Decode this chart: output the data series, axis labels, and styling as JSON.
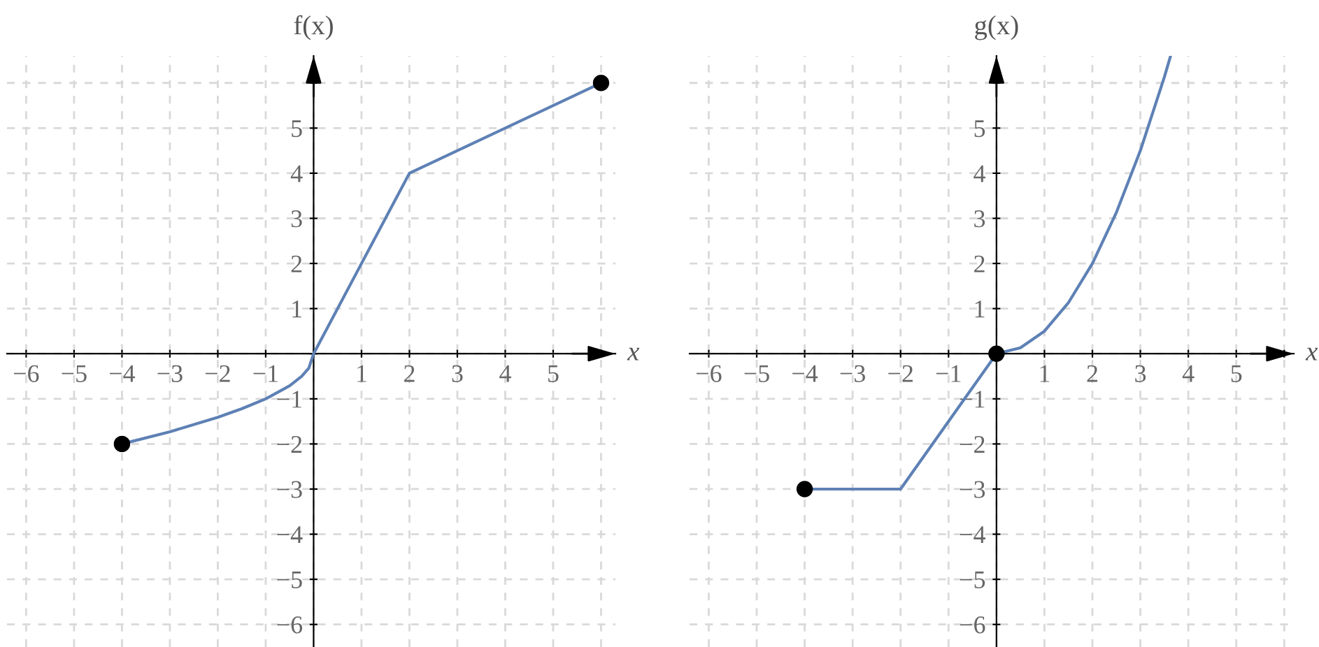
{
  "chart_data": [
    {
      "type": "line",
      "xlabel": "x",
      "ylabel": "f(x)",
      "grid": true,
      "xlim": [
        -6.4,
        6.3
      ],
      "ylim": [
        -6.5,
        6.6
      ],
      "xticks": [
        {
          "value": -6,
          "label": "−6"
        },
        {
          "value": -5,
          "label": "−5"
        },
        {
          "value": -4,
          "label": "−4"
        },
        {
          "value": -3,
          "label": "−3"
        },
        {
          "value": -2,
          "label": "−2"
        },
        {
          "value": -1,
          "label": "−1"
        },
        {
          "value": 0,
          "label": null
        },
        1,
        2,
        3,
        4,
        5,
        {
          "value": 6,
          "label": null
        }
      ],
      "yticks": [
        {
          "value": -6,
          "label": "−6"
        },
        {
          "value": -5,
          "label": "−5"
        },
        {
          "value": -4,
          "label": "−4"
        },
        {
          "value": -3,
          "label": "−3"
        },
        {
          "value": -2,
          "label": "−2"
        },
        {
          "value": -1,
          "label": "−1"
        },
        {
          "value": 0,
          "label": null
        },
        1,
        2,
        3,
        4,
        5,
        {
          "value": 6,
          "label": null
        }
      ],
      "series": [
        {
          "color": "#5e81b5",
          "x": [
            -4,
            -3,
            -2,
            -1.5,
            -1,
            -0.5,
            -0.25,
            -0.1,
            0,
            2,
            6
          ],
          "values": [
            -2,
            -1.73,
            -1.41,
            -1.22,
            -1,
            -0.71,
            -0.5,
            -0.32,
            0,
            4,
            6
          ]
        },
        {
          "type": "scatter",
          "color": "#000000",
          "x": [
            -4,
            6
          ],
          "values": [
            -2,
            6
          ]
        }
      ]
    },
    {
      "type": "line",
      "xlabel": "x",
      "ylabel": "g(x)",
      "grid": true,
      "xlim": [
        -6.4,
        6.2
      ],
      "ylim": [
        -6.5,
        6.6
      ],
      "xticks": [
        {
          "value": -6,
          "label": "−6"
        },
        {
          "value": -5,
          "label": "−5"
        },
        {
          "value": -4,
          "label": "−4"
        },
        {
          "value": -3,
          "label": "−3"
        },
        {
          "value": -2,
          "label": "−2"
        },
        {
          "value": -1,
          "label": "−1"
        },
        {
          "value": 0,
          "label": null
        },
        1,
        2,
        3,
        4,
        5,
        {
          "value": 6,
          "label": null
        }
      ],
      "yticks": [
        {
          "value": -6,
          "label": "−6"
        },
        {
          "value": -5,
          "label": "−5"
        },
        {
          "value": -4,
          "label": "−4"
        },
        {
          "value": -3,
          "label": "−3"
        },
        {
          "value": -2,
          "label": "−2"
        },
        {
          "value": -1,
          "label": "−1"
        },
        {
          "value": 0,
          "label": null
        },
        1,
        2,
        3,
        4,
        5,
        {
          "value": 6,
          "label": null
        }
      ],
      "series": [
        {
          "color": "#5e81b5",
          "x": [
            -4,
            -2,
            0,
            0.5,
            1,
            1.5,
            2,
            2.5,
            3,
            3.5,
            3.63
          ],
          "values": [
            -3,
            -3,
            0,
            0.13,
            0.5,
            1.13,
            2,
            3.13,
            4.5,
            6.13,
            6.6
          ]
        },
        {
          "type": "scatter",
          "color": "#000000",
          "x": [
            -4,
            0
          ],
          "values": [
            -3,
            0
          ]
        }
      ]
    }
  ]
}
